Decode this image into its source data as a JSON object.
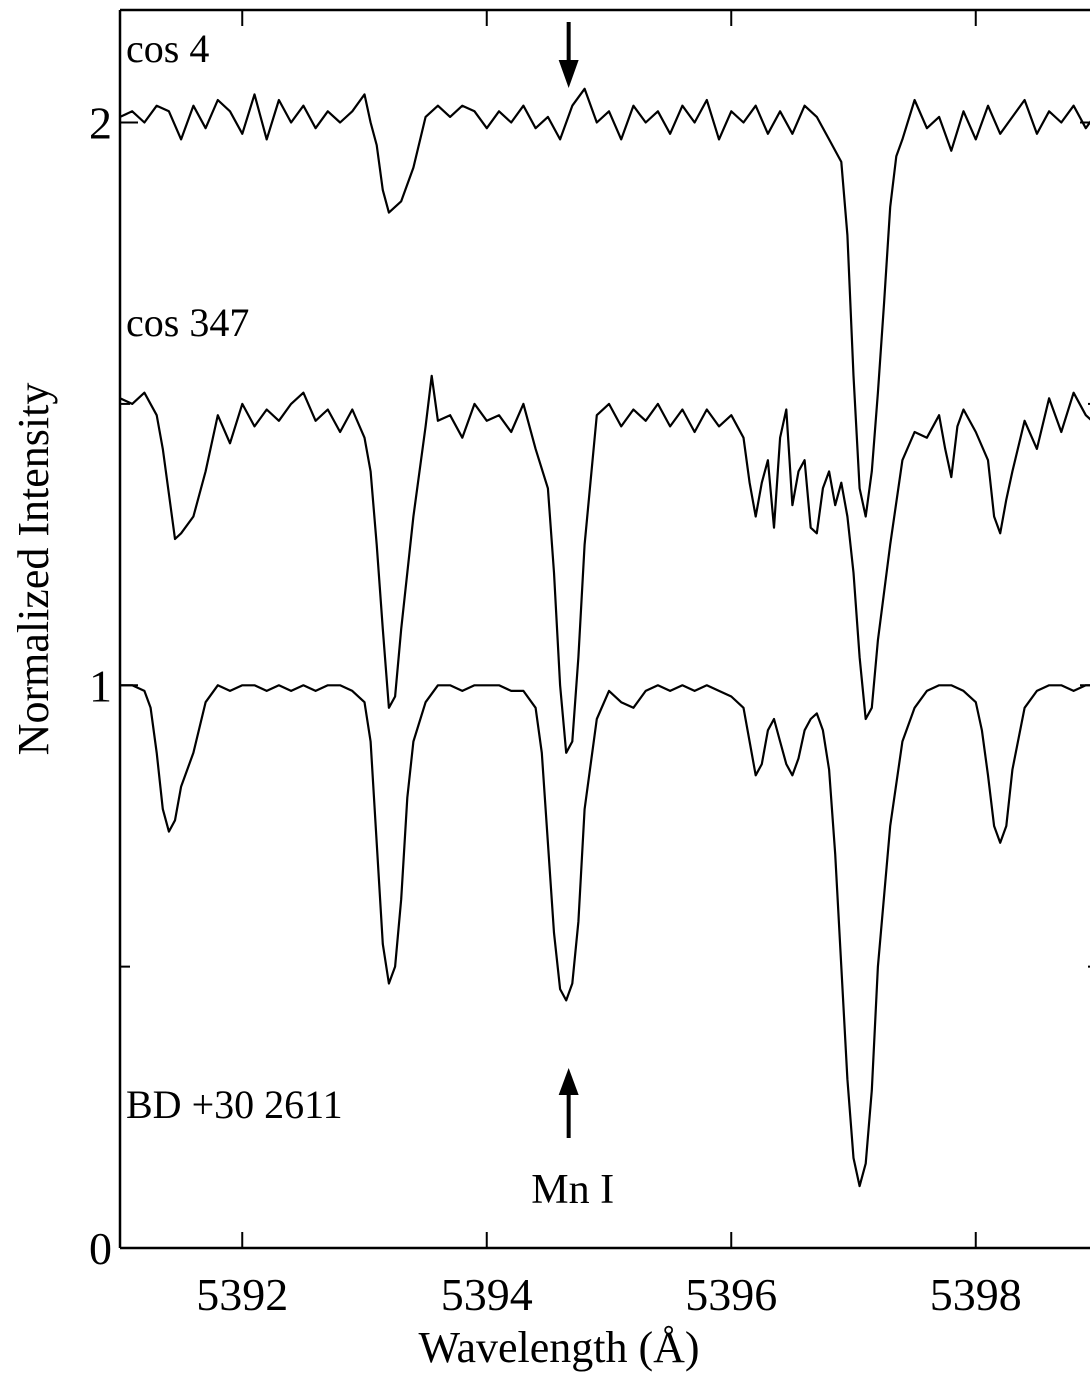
{
  "chart_data": {
    "type": "line",
    "title": "",
    "xlabel": "Wavelength (Å)",
    "ylabel": "Normalized Intensity",
    "xlim": [
      5391.0,
      5399.0
    ],
    "ylim": [
      0.0,
      2.2
    ],
    "grid": false,
    "legend": "none",
    "x_ticks": [
      5392,
      5394,
      5396,
      5398
    ],
    "x_tick_labels": [
      "5392",
      "5394",
      "5396",
      "5398"
    ],
    "y_ticks_major": [
      0,
      1,
      2
    ],
    "y_tick_labels": [
      "0",
      "1",
      "2"
    ],
    "y_ticks_minor": [
      0.5,
      1.5
    ],
    "series": [
      {
        "name": "cos 4",
        "label_text": "cos 4",
        "color": "#000000",
        "points": [
          [
            5391.0,
            2.01
          ],
          [
            5391.1,
            2.02
          ],
          [
            5391.2,
            2.0
          ],
          [
            5391.3,
            2.03
          ],
          [
            5391.4,
            2.02
          ],
          [
            5391.5,
            1.97
          ],
          [
            5391.6,
            2.03
          ],
          [
            5391.7,
            1.99
          ],
          [
            5391.8,
            2.04
          ],
          [
            5391.9,
            2.02
          ],
          [
            5392.0,
            1.98
          ],
          [
            5392.1,
            2.05
          ],
          [
            5392.2,
            1.97
          ],
          [
            5392.3,
            2.04
          ],
          [
            5392.4,
            2.0
          ],
          [
            5392.5,
            2.03
          ],
          [
            5392.6,
            1.99
          ],
          [
            5392.7,
            2.02
          ],
          [
            5392.8,
            2.0
          ],
          [
            5392.9,
            2.02
          ],
          [
            5393.0,
            2.05
          ],
          [
            5393.05,
            2.0
          ],
          [
            5393.1,
            1.96
          ],
          [
            5393.15,
            1.88
          ],
          [
            5393.2,
            1.84
          ],
          [
            5393.3,
            1.86
          ],
          [
            5393.4,
            1.92
          ],
          [
            5393.5,
            2.01
          ],
          [
            5393.6,
            2.03
          ],
          [
            5393.7,
            2.01
          ],
          [
            5393.8,
            2.03
          ],
          [
            5393.9,
            2.02
          ],
          [
            5394.0,
            1.99
          ],
          [
            5394.1,
            2.02
          ],
          [
            5394.2,
            2.0
          ],
          [
            5394.3,
            2.03
          ],
          [
            5394.4,
            1.99
          ],
          [
            5394.5,
            2.01
          ],
          [
            5394.6,
            1.97
          ],
          [
            5394.7,
            2.03
          ],
          [
            5394.8,
            2.06
          ],
          [
            5394.9,
            2.0
          ],
          [
            5395.0,
            2.02
          ],
          [
            5395.1,
            1.97
          ],
          [
            5395.2,
            2.03
          ],
          [
            5395.3,
            2.0
          ],
          [
            5395.4,
            2.02
          ],
          [
            5395.5,
            1.98
          ],
          [
            5395.6,
            2.03
          ],
          [
            5395.7,
            2.0
          ],
          [
            5395.8,
            2.04
          ],
          [
            5395.9,
            1.97
          ],
          [
            5396.0,
            2.02
          ],
          [
            5396.1,
            2.0
          ],
          [
            5396.2,
            2.03
          ],
          [
            5396.3,
            1.98
          ],
          [
            5396.4,
            2.02
          ],
          [
            5396.5,
            1.98
          ],
          [
            5396.6,
            2.03
          ],
          [
            5396.7,
            2.01
          ],
          [
            5396.8,
            1.97
          ],
          [
            5396.9,
            1.93
          ],
          [
            5396.95,
            1.8
          ],
          [
            5397.0,
            1.55
          ],
          [
            5397.05,
            1.35
          ],
          [
            5397.1,
            1.3
          ],
          [
            5397.15,
            1.38
          ],
          [
            5397.2,
            1.52
          ],
          [
            5397.25,
            1.68
          ],
          [
            5397.3,
            1.85
          ],
          [
            5397.35,
            1.94
          ],
          [
            5397.4,
            1.97
          ],
          [
            5397.5,
            2.04
          ],
          [
            5397.6,
            1.99
          ],
          [
            5397.7,
            2.01
          ],
          [
            5397.8,
            1.95
          ],
          [
            5397.9,
            2.02
          ],
          [
            5398.0,
            1.97
          ],
          [
            5398.1,
            2.03
          ],
          [
            5398.2,
            1.98
          ],
          [
            5398.3,
            2.01
          ],
          [
            5398.4,
            2.04
          ],
          [
            5398.5,
            1.98
          ],
          [
            5398.6,
            2.02
          ],
          [
            5398.7,
            2.0
          ],
          [
            5398.8,
            2.03
          ],
          [
            5398.9,
            1.99
          ],
          [
            5399.0,
            2.02
          ]
        ]
      },
      {
        "name": "cos 347",
        "label_text": "cos 347",
        "color": "#000000",
        "points": [
          [
            5391.0,
            1.51
          ],
          [
            5391.1,
            1.5
          ],
          [
            5391.2,
            1.52
          ],
          [
            5391.3,
            1.48
          ],
          [
            5391.35,
            1.42
          ],
          [
            5391.4,
            1.34
          ],
          [
            5391.45,
            1.26
          ],
          [
            5391.5,
            1.27
          ],
          [
            5391.6,
            1.3
          ],
          [
            5391.7,
            1.38
          ],
          [
            5391.8,
            1.48
          ],
          [
            5391.9,
            1.43
          ],
          [
            5392.0,
            1.5
          ],
          [
            5392.1,
            1.46
          ],
          [
            5392.2,
            1.49
          ],
          [
            5392.3,
            1.47
          ],
          [
            5392.4,
            1.5
          ],
          [
            5392.5,
            1.52
          ],
          [
            5392.6,
            1.47
          ],
          [
            5392.7,
            1.49
          ],
          [
            5392.8,
            1.45
          ],
          [
            5392.9,
            1.49
          ],
          [
            5393.0,
            1.44
          ],
          [
            5393.05,
            1.38
          ],
          [
            5393.1,
            1.25
          ],
          [
            5393.15,
            1.1
          ],
          [
            5393.2,
            0.96
          ],
          [
            5393.25,
            0.98
          ],
          [
            5393.3,
            1.1
          ],
          [
            5393.4,
            1.3
          ],
          [
            5393.5,
            1.46
          ],
          [
            5393.55,
            1.55
          ],
          [
            5393.6,
            1.47
          ],
          [
            5393.7,
            1.48
          ],
          [
            5393.8,
            1.44
          ],
          [
            5393.9,
            1.5
          ],
          [
            5394.0,
            1.47
          ],
          [
            5394.1,
            1.48
          ],
          [
            5394.2,
            1.45
          ],
          [
            5394.3,
            1.5
          ],
          [
            5394.4,
            1.42
          ],
          [
            5394.5,
            1.35
          ],
          [
            5394.55,
            1.2
          ],
          [
            5394.6,
            1.0
          ],
          [
            5394.65,
            0.88
          ],
          [
            5394.7,
            0.9
          ],
          [
            5394.75,
            1.05
          ],
          [
            5394.8,
            1.25
          ],
          [
            5394.9,
            1.48
          ],
          [
            5395.0,
            1.5
          ],
          [
            5395.1,
            1.46
          ],
          [
            5395.2,
            1.49
          ],
          [
            5395.3,
            1.47
          ],
          [
            5395.4,
            1.5
          ],
          [
            5395.5,
            1.46
          ],
          [
            5395.6,
            1.49
          ],
          [
            5395.7,
            1.45
          ],
          [
            5395.8,
            1.49
          ],
          [
            5395.9,
            1.46
          ],
          [
            5396.0,
            1.48
          ],
          [
            5396.1,
            1.44
          ],
          [
            5396.15,
            1.36
          ],
          [
            5396.2,
            1.3
          ],
          [
            5396.25,
            1.36
          ],
          [
            5396.3,
            1.4
          ],
          [
            5396.35,
            1.28
          ],
          [
            5396.4,
            1.44
          ],
          [
            5396.45,
            1.49
          ],
          [
            5396.5,
            1.32
          ],
          [
            5396.55,
            1.38
          ],
          [
            5396.6,
            1.4
          ],
          [
            5396.65,
            1.28
          ],
          [
            5396.7,
            1.27
          ],
          [
            5396.75,
            1.35
          ],
          [
            5396.8,
            1.38
          ],
          [
            5396.85,
            1.32
          ],
          [
            5396.9,
            1.36
          ],
          [
            5396.95,
            1.3
          ],
          [
            5397.0,
            1.2
          ],
          [
            5397.05,
            1.05
          ],
          [
            5397.1,
            0.94
          ],
          [
            5397.15,
            0.96
          ],
          [
            5397.2,
            1.08
          ],
          [
            5397.3,
            1.25
          ],
          [
            5397.4,
            1.4
          ],
          [
            5397.5,
            1.45
          ],
          [
            5397.6,
            1.44
          ],
          [
            5397.7,
            1.48
          ],
          [
            5397.75,
            1.42
          ],
          [
            5397.8,
            1.37
          ],
          [
            5397.85,
            1.46
          ],
          [
            5397.9,
            1.49
          ],
          [
            5398.0,
            1.45
          ],
          [
            5398.1,
            1.4
          ],
          [
            5398.15,
            1.3
          ],
          [
            5398.2,
            1.27
          ],
          [
            5398.25,
            1.33
          ],
          [
            5398.3,
            1.38
          ],
          [
            5398.4,
            1.47
          ],
          [
            5398.5,
            1.42
          ],
          [
            5398.6,
            1.51
          ],
          [
            5398.7,
            1.45
          ],
          [
            5398.8,
            1.52
          ],
          [
            5398.9,
            1.48
          ],
          [
            5399.0,
            1.46
          ]
        ]
      },
      {
        "name": "BD +30 2611",
        "label_text": "BD +30 2611",
        "color": "#000000",
        "points": [
          [
            5391.0,
            1.0
          ],
          [
            5391.1,
            1.0
          ],
          [
            5391.2,
            0.99
          ],
          [
            5391.25,
            0.96
          ],
          [
            5391.3,
            0.88
          ],
          [
            5391.35,
            0.78
          ],
          [
            5391.4,
            0.74
          ],
          [
            5391.45,
            0.76
          ],
          [
            5391.5,
            0.82
          ],
          [
            5391.6,
            0.88
          ],
          [
            5391.7,
            0.97
          ],
          [
            5391.8,
            1.0
          ],
          [
            5391.9,
            0.99
          ],
          [
            5392.0,
            1.0
          ],
          [
            5392.1,
            1.0
          ],
          [
            5392.2,
            0.99
          ],
          [
            5392.3,
            1.0
          ],
          [
            5392.4,
            0.99
          ],
          [
            5392.5,
            1.0
          ],
          [
            5392.6,
            0.99
          ],
          [
            5392.7,
            1.0
          ],
          [
            5392.8,
            1.0
          ],
          [
            5392.9,
            0.99
          ],
          [
            5393.0,
            0.97
          ],
          [
            5393.05,
            0.9
          ],
          [
            5393.1,
            0.72
          ],
          [
            5393.15,
            0.54
          ],
          [
            5393.2,
            0.47
          ],
          [
            5393.25,
            0.5
          ],
          [
            5393.3,
            0.62
          ],
          [
            5393.35,
            0.8
          ],
          [
            5393.4,
            0.9
          ],
          [
            5393.5,
            0.97
          ],
          [
            5393.6,
            1.0
          ],
          [
            5393.7,
            1.0
          ],
          [
            5393.8,
            0.99
          ],
          [
            5393.9,
            1.0
          ],
          [
            5394.0,
            1.0
          ],
          [
            5394.1,
            1.0
          ],
          [
            5394.2,
            0.99
          ],
          [
            5394.3,
            0.99
          ],
          [
            5394.4,
            0.96
          ],
          [
            5394.45,
            0.88
          ],
          [
            5394.5,
            0.72
          ],
          [
            5394.55,
            0.56
          ],
          [
            5394.6,
            0.46
          ],
          [
            5394.65,
            0.44
          ],
          [
            5394.7,
            0.47
          ],
          [
            5394.75,
            0.58
          ],
          [
            5394.8,
            0.78
          ],
          [
            5394.9,
            0.94
          ],
          [
            5395.0,
            0.99
          ],
          [
            5395.1,
            0.97
          ],
          [
            5395.2,
            0.96
          ],
          [
            5395.3,
            0.99
          ],
          [
            5395.4,
            1.0
          ],
          [
            5395.5,
            0.99
          ],
          [
            5395.6,
            1.0
          ],
          [
            5395.7,
            0.99
          ],
          [
            5395.8,
            1.0
          ],
          [
            5395.9,
            0.99
          ],
          [
            5396.0,
            0.98
          ],
          [
            5396.1,
            0.96
          ],
          [
            5396.15,
            0.9
          ],
          [
            5396.2,
            0.84
          ],
          [
            5396.25,
            0.86
          ],
          [
            5396.3,
            0.92
          ],
          [
            5396.35,
            0.94
          ],
          [
            5396.4,
            0.9
          ],
          [
            5396.45,
            0.86
          ],
          [
            5396.5,
            0.84
          ],
          [
            5396.55,
            0.87
          ],
          [
            5396.6,
            0.92
          ],
          [
            5396.65,
            0.94
          ],
          [
            5396.7,
            0.95
          ],
          [
            5396.75,
            0.92
          ],
          [
            5396.8,
            0.85
          ],
          [
            5396.85,
            0.7
          ],
          [
            5396.9,
            0.5
          ],
          [
            5396.95,
            0.3
          ],
          [
            5397.0,
            0.16
          ],
          [
            5397.05,
            0.11
          ],
          [
            5397.1,
            0.15
          ],
          [
            5397.15,
            0.28
          ],
          [
            5397.2,
            0.5
          ],
          [
            5397.3,
            0.75
          ],
          [
            5397.4,
            0.9
          ],
          [
            5397.5,
            0.96
          ],
          [
            5397.6,
            0.99
          ],
          [
            5397.7,
            1.0
          ],
          [
            5397.8,
            1.0
          ],
          [
            5397.9,
            0.99
          ],
          [
            5398.0,
            0.97
          ],
          [
            5398.05,
            0.92
          ],
          [
            5398.1,
            0.84
          ],
          [
            5398.15,
            0.75
          ],
          [
            5398.2,
            0.72
          ],
          [
            5398.25,
            0.75
          ],
          [
            5398.3,
            0.85
          ],
          [
            5398.4,
            0.96
          ],
          [
            5398.5,
            0.99
          ],
          [
            5398.6,
            1.0
          ],
          [
            5398.7,
            1.0
          ],
          [
            5398.8,
            0.99
          ],
          [
            5398.9,
            1.0
          ],
          [
            5399.0,
            1.0
          ]
        ]
      }
    ],
    "annotations": [
      {
        "text": "Mn I",
        "x": 5394.67,
        "arrow": "up-from-below"
      },
      {
        "text": "",
        "x": 5394.67,
        "arrow": "down-from-above"
      }
    ]
  }
}
